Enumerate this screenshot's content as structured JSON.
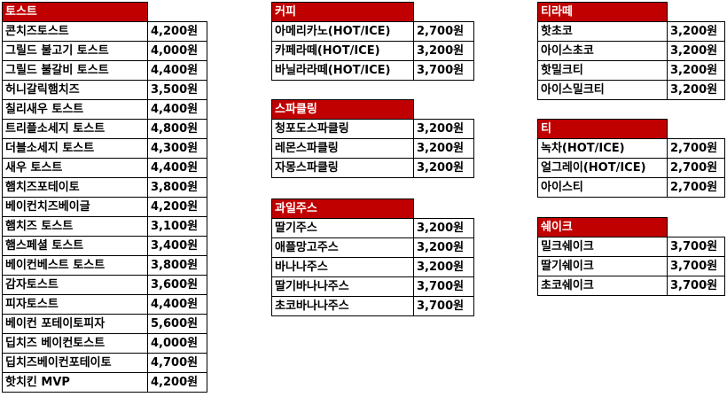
{
  "sections": [
    {
      "id": "toast",
      "title": "토스트",
      "items": [
        {
          "name": "콘치즈토스트",
          "price": "4,200원"
        },
        {
          "name": "그릴드 불고기 토스트",
          "price": "4,000원"
        },
        {
          "name": "그릴드 불갈비 토스트",
          "price": "4,400원"
        },
        {
          "name": "허니갈릭햄치즈",
          "price": "3,500원"
        },
        {
          "name": "칠리새우 토스트",
          "price": "4,400원"
        },
        {
          "name": "트리플소세지 토스트",
          "price": "4,800원"
        },
        {
          "name": "더블소세지 토스트",
          "price": "4,300원"
        },
        {
          "name": "새우 토스트",
          "price": "4,400원"
        },
        {
          "name": "햄치즈포테이토",
          "price": "3,800원"
        },
        {
          "name": "베이컨치즈베이글",
          "price": "4,200원"
        },
        {
          "name": "햄치즈 토스트",
          "price": "3,100원"
        },
        {
          "name": "햄스페셜 토스트",
          "price": "3,400원"
        },
        {
          "name": "베이컨베스트 토스트",
          "price": "3,800원"
        },
        {
          "name": "감자토스트",
          "price": "3,600원"
        },
        {
          "name": "피자토스트",
          "price": "4,400원"
        },
        {
          "name": "베이컨 포테이토피자",
          "price": "5,600원"
        },
        {
          "name": "딥치즈 베이컨토스트",
          "price": "4,000원"
        },
        {
          "name": "딥치즈베이컨포테이토",
          "price": "4,700원"
        },
        {
          "name": "핫치킨 MVP",
          "price": "4,200원"
        }
      ]
    },
    {
      "id": "coffee",
      "title": "커피",
      "items": [
        {
          "name": "아메리카노(HOT/ICE)",
          "price": "2,700원"
        },
        {
          "name": "카페라떼(HOT/ICE)",
          "price": "3,200원"
        },
        {
          "name": "바닐라라떼(HOT/ICE)",
          "price": "3,700원"
        }
      ]
    },
    {
      "id": "sparkling",
      "title": "스파클링",
      "items": [
        {
          "name": "청포도스파클링",
          "price": "3,200원"
        },
        {
          "name": "레몬스파클링",
          "price": "3,200원"
        },
        {
          "name": "자몽스파클링",
          "price": "3,200원"
        }
      ]
    },
    {
      "id": "juice",
      "title": "과일주스",
      "items": [
        {
          "name": "딸기주스",
          "price": "3,200원"
        },
        {
          "name": "애플망고주스",
          "price": "3,200원"
        },
        {
          "name": "바나나주스",
          "price": "3,200원"
        },
        {
          "name": "딸기바나나주스",
          "price": "3,700원"
        },
        {
          "name": "초코바나나주스",
          "price": "3,700원"
        }
      ]
    },
    {
      "id": "latte",
      "title": "티라떼",
      "items": [
        {
          "name": "핫초코",
          "price": "3,200원"
        },
        {
          "name": "아이스초코",
          "price": "3,200원"
        },
        {
          "name": "핫밀크티",
          "price": "3,200원"
        },
        {
          "name": "아이스밀크티",
          "price": "3,200원"
        }
      ]
    },
    {
      "id": "tea",
      "title": "티",
      "items": [
        {
          "name": "녹차(HOT/ICE)",
          "price": "2,700원"
        },
        {
          "name": "얼그레이(HOT/ICE)",
          "price": "2,700원"
        },
        {
          "name": "아이스티",
          "price": "2,700원"
        }
      ]
    },
    {
      "id": "shake",
      "title": "쉐이크",
      "items": [
        {
          "name": "밀크쉐이크",
          "price": "3,700원"
        },
        {
          "name": "딸기쉐이크",
          "price": "3,700원"
        },
        {
          "name": "초코쉐이크",
          "price": "3,700원"
        }
      ]
    }
  ]
}
